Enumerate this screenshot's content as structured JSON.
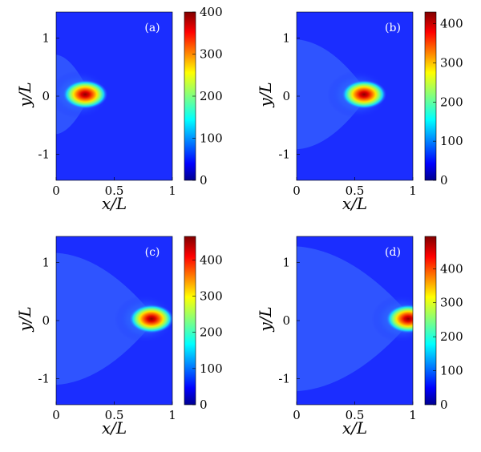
{
  "chart_data": [
    {
      "type": "heatmap",
      "panel_label": "(a)",
      "xlabel": "x/L",
      "ylabel": "y/L",
      "xlim": [
        0,
        1
      ],
      "ylim": [
        -1.45,
        1.45
      ],
      "xticks": [
        "0",
        "0.5",
        "1"
      ],
      "yticks": [
        "1",
        "0",
        "-1"
      ],
      "colorbar": {
        "min": 0,
        "max": 400,
        "ticks": [
          "0",
          "100",
          "200",
          "300",
          "400"
        ]
      },
      "hotspot": {
        "x": 0.25,
        "y": 0.03,
        "peak": 400
      },
      "colormap": "jet"
    },
    {
      "type": "heatmap",
      "panel_label": "(b)",
      "xlabel": "x/L",
      "ylabel": "y/L",
      "xlim": [
        0,
        1
      ],
      "ylim": [
        -1.45,
        1.45
      ],
      "xticks": [
        "0",
        "0.5",
        "1"
      ],
      "yticks": [
        "1",
        "0",
        "-1"
      ],
      "colorbar": {
        "min": 0,
        "max": 430,
        "ticks": [
          "0",
          "100",
          "200",
          "300",
          "400"
        ]
      },
      "hotspot": {
        "x": 0.58,
        "y": 0.03,
        "peak": 430
      },
      "colormap": "jet"
    },
    {
      "type": "heatmap",
      "panel_label": "(c)",
      "xlabel": "x/L",
      "ylabel": "y/L",
      "xlim": [
        0,
        1
      ],
      "ylim": [
        -1.45,
        1.45
      ],
      "xticks": [
        "0",
        "0.5",
        "1"
      ],
      "yticks": [
        "1",
        "0",
        "-1"
      ],
      "colorbar": {
        "min": 0,
        "max": 465,
        "ticks": [
          "0",
          "100",
          "200",
          "300",
          "400"
        ]
      },
      "hotspot": {
        "x": 0.82,
        "y": 0.03,
        "peak": 465
      },
      "colormap": "jet"
    },
    {
      "type": "heatmap",
      "panel_label": "(d)",
      "xlabel": "x/L",
      "ylabel": "y/L",
      "xlim": [
        0,
        1
      ],
      "ylim": [
        -1.45,
        1.45
      ],
      "xticks": [
        "0",
        "0.5",
        "1"
      ],
      "yticks": [
        "1",
        "0",
        "-1"
      ],
      "colorbar": {
        "min": 0,
        "max": 495,
        "ticks": [
          "0",
          "100",
          "200",
          "300",
          "400"
        ]
      },
      "hotspot": {
        "x": 0.96,
        "y": 0.03,
        "peak": 495
      },
      "colormap": "jet"
    }
  ]
}
